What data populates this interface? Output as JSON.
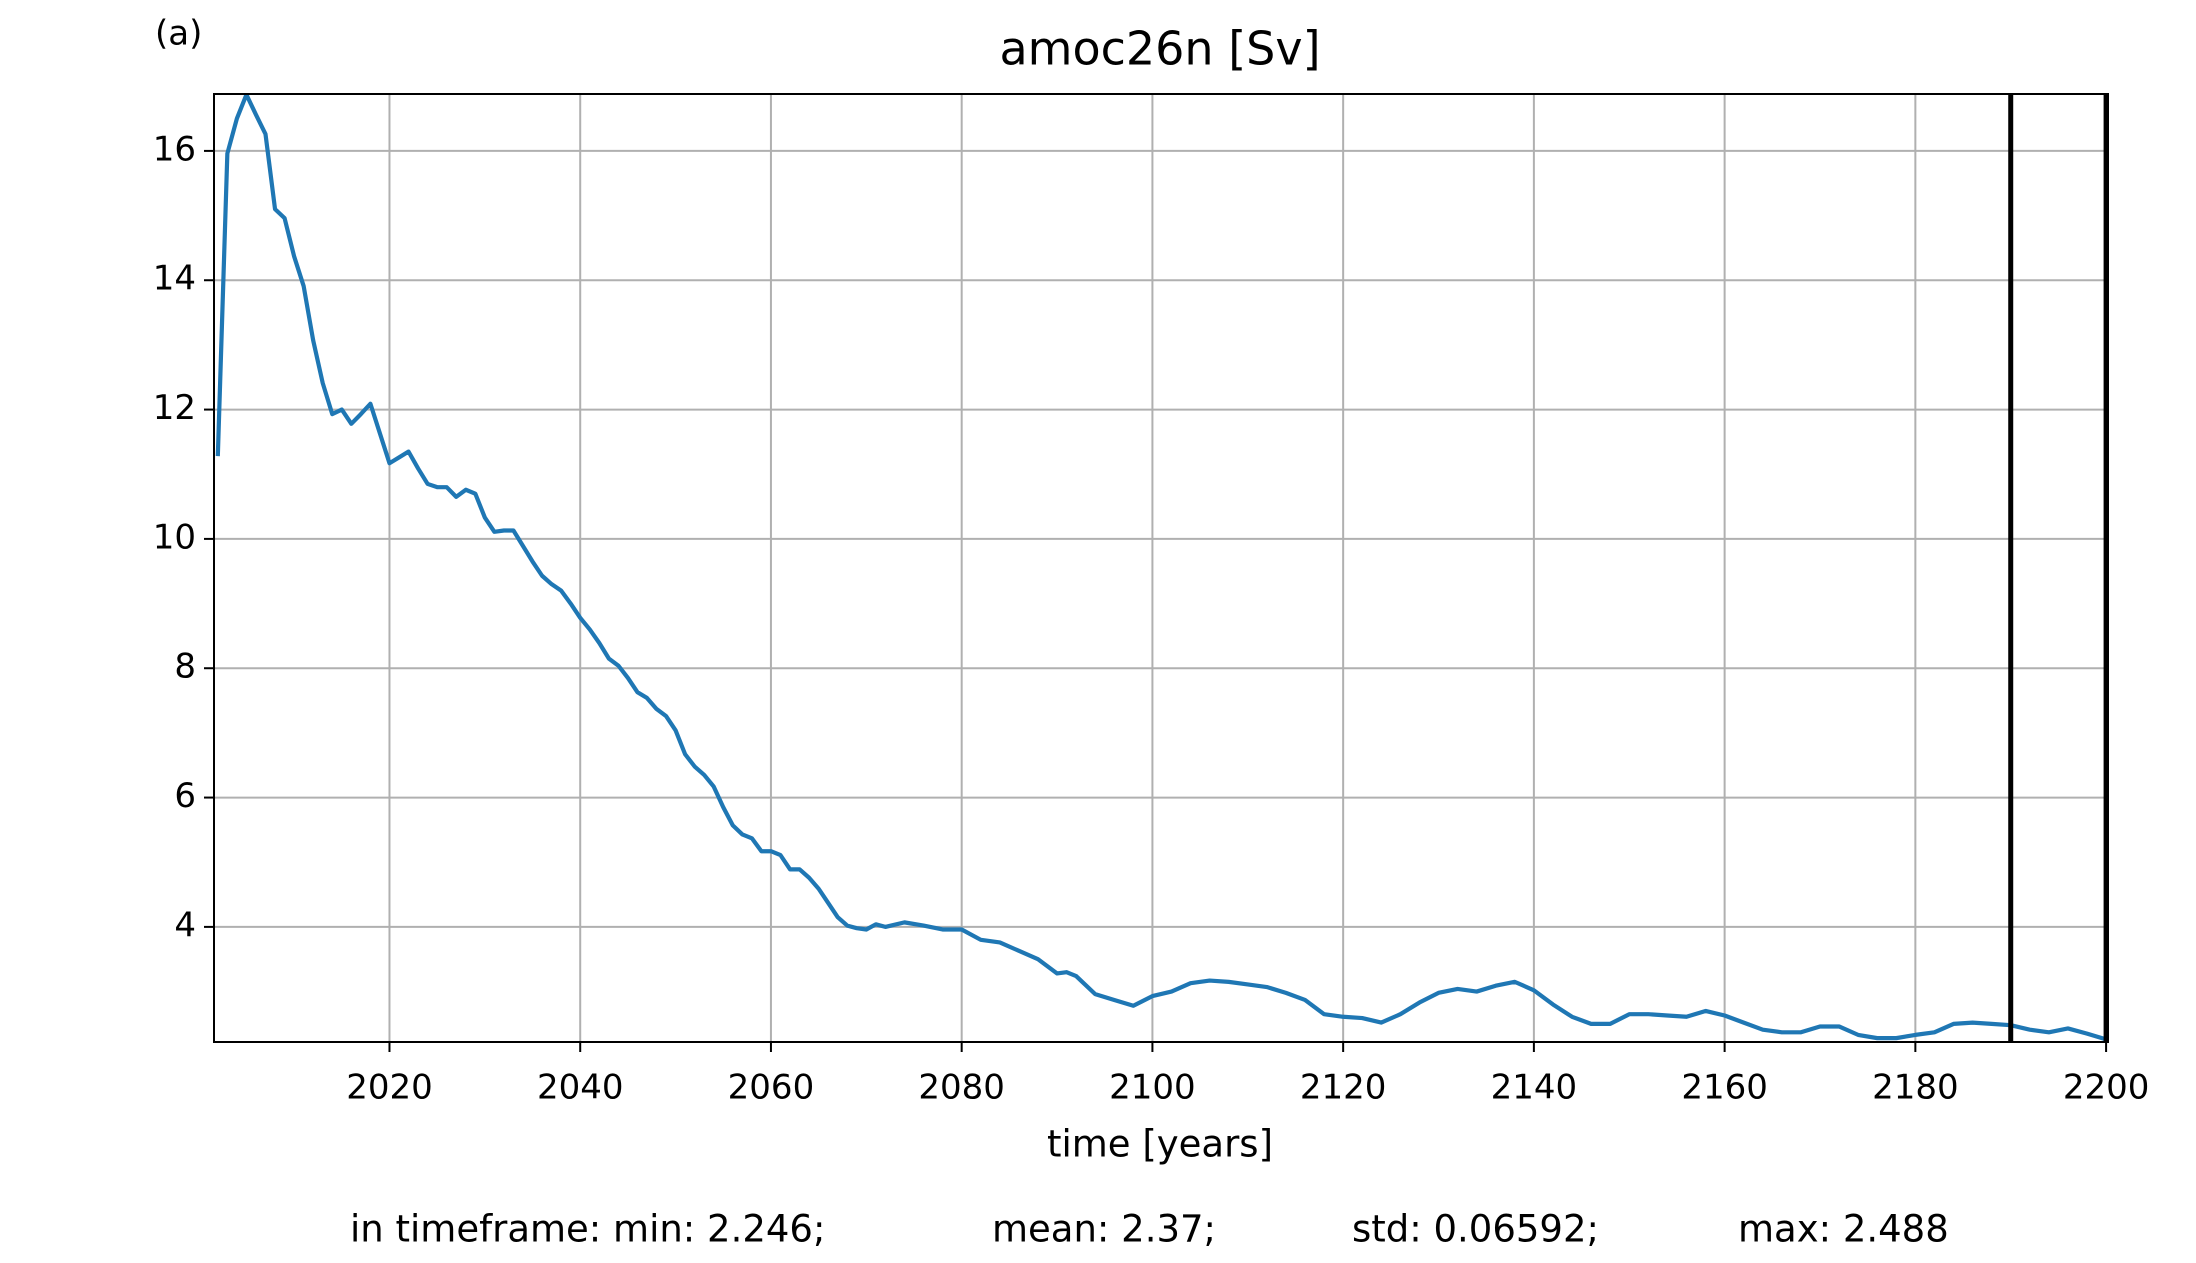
{
  "chart_data": {
    "type": "line",
    "panel_label": "(a)",
    "title": "amoc26n [Sv]",
    "x_label": "time [years]",
    "annotations": [
      "in timeframe: min: 2.246;",
      "mean: 2.37;",
      "std: 0.06592;",
      "max: 2.488"
    ],
    "x": [
      2002,
      2003,
      2004,
      2005,
      2006,
      2007,
      2008,
      2009,
      2010,
      2011,
      2012,
      2013,
      2014,
      2015,
      2016,
      2017,
      2018,
      2019,
      2020,
      2021,
      2022,
      2023,
      2024,
      2025,
      2026,
      2027,
      2028,
      2029,
      2030,
      2031,
      2032,
      2033,
      2034,
      2035,
      2036,
      2037,
      2038,
      2039,
      2040,
      2041,
      2042,
      2043,
      2044,
      2045,
      2046,
      2047,
      2048,
      2049,
      2050,
      2051,
      2052,
      2053,
      2054,
      2055,
      2056,
      2057,
      2058,
      2059,
      2060,
      2061,
      2062,
      2063,
      2064,
      2065,
      2066,
      2067,
      2068,
      2069,
      2070,
      2071,
      2072,
      2074,
      2076,
      2078,
      2080,
      2082,
      2084,
      2086,
      2088,
      2090,
      2091,
      2092,
      2094,
      2096,
      2098,
      2100,
      2102,
      2104,
      2106,
      2108,
      2110,
      2112,
      2114,
      2116,
      2118,
      2120,
      2122,
      2124,
      2126,
      2128,
      2130,
      2132,
      2134,
      2136,
      2138,
      2140,
      2142,
      2144,
      2146,
      2148,
      2150,
      2152,
      2154,
      2156,
      2158,
      2160,
      2162,
      2164,
      2166,
      2168,
      2170,
      2172,
      2174,
      2176,
      2178,
      2180,
      2182,
      2184,
      2186,
      2188,
      2190,
      2192,
      2194,
      2196,
      2198,
      2200
    ],
    "series": [
      {
        "name": "amoc26n",
        "color": "#1f77b4",
        "values": [
          11.28,
          15.96,
          16.5,
          16.87,
          16.56,
          16.26,
          15.1,
          14.96,
          14.37,
          13.91,
          13.07,
          12.41,
          11.93,
          12.0,
          11.78,
          11.93,
          12.09,
          11.63,
          11.17,
          11.26,
          11.35,
          11.09,
          10.85,
          10.8,
          10.8,
          10.65,
          10.76,
          10.7,
          10.33,
          10.11,
          10.13,
          10.13,
          9.89,
          9.65,
          9.43,
          9.3,
          9.2,
          9.0,
          8.78,
          8.6,
          8.39,
          8.15,
          8.04,
          7.85,
          7.63,
          7.54,
          7.37,
          7.26,
          7.04,
          6.67,
          6.48,
          6.35,
          6.17,
          5.85,
          5.57,
          5.43,
          5.37,
          5.17,
          5.17,
          5.11,
          4.89,
          4.89,
          4.76,
          4.59,
          4.37,
          4.15,
          4.02,
          3.98,
          3.96,
          4.04,
          4.0,
          4.07,
          4.02,
          3.96,
          3.96,
          3.8,
          3.76,
          3.63,
          3.5,
          3.28,
          3.3,
          3.24,
          2.96,
          2.87,
          2.78,
          2.93,
          3.0,
          3.13,
          3.17,
          3.15,
          3.11,
          3.07,
          2.98,
          2.87,
          2.65,
          2.61,
          2.59,
          2.52,
          2.65,
          2.83,
          2.98,
          3.04,
          3.0,
          3.09,
          3.15,
          3.02,
          2.8,
          2.61,
          2.5,
          2.5,
          2.65,
          2.65,
          2.63,
          2.61,
          2.7,
          2.63,
          2.52,
          2.41,
          2.37,
          2.37,
          2.46,
          2.46,
          2.33,
          2.28,
          2.28,
          2.33,
          2.37,
          2.5,
          2.52,
          2.5,
          2.48,
          2.41,
          2.37,
          2.43,
          2.35,
          2.26
        ]
      }
    ],
    "vlines": [
      2190,
      2200
    ],
    "xlim": [
      2001.6,
      2200.2
    ],
    "xticks": [
      2020,
      2040,
      2060,
      2080,
      2100,
      2120,
      2140,
      2160,
      2180,
      2200
    ],
    "ylim": [
      2.22,
      16.88
    ],
    "yticks": [
      4,
      6,
      8,
      10,
      12,
      14,
      16
    ],
    "grid": true
  }
}
